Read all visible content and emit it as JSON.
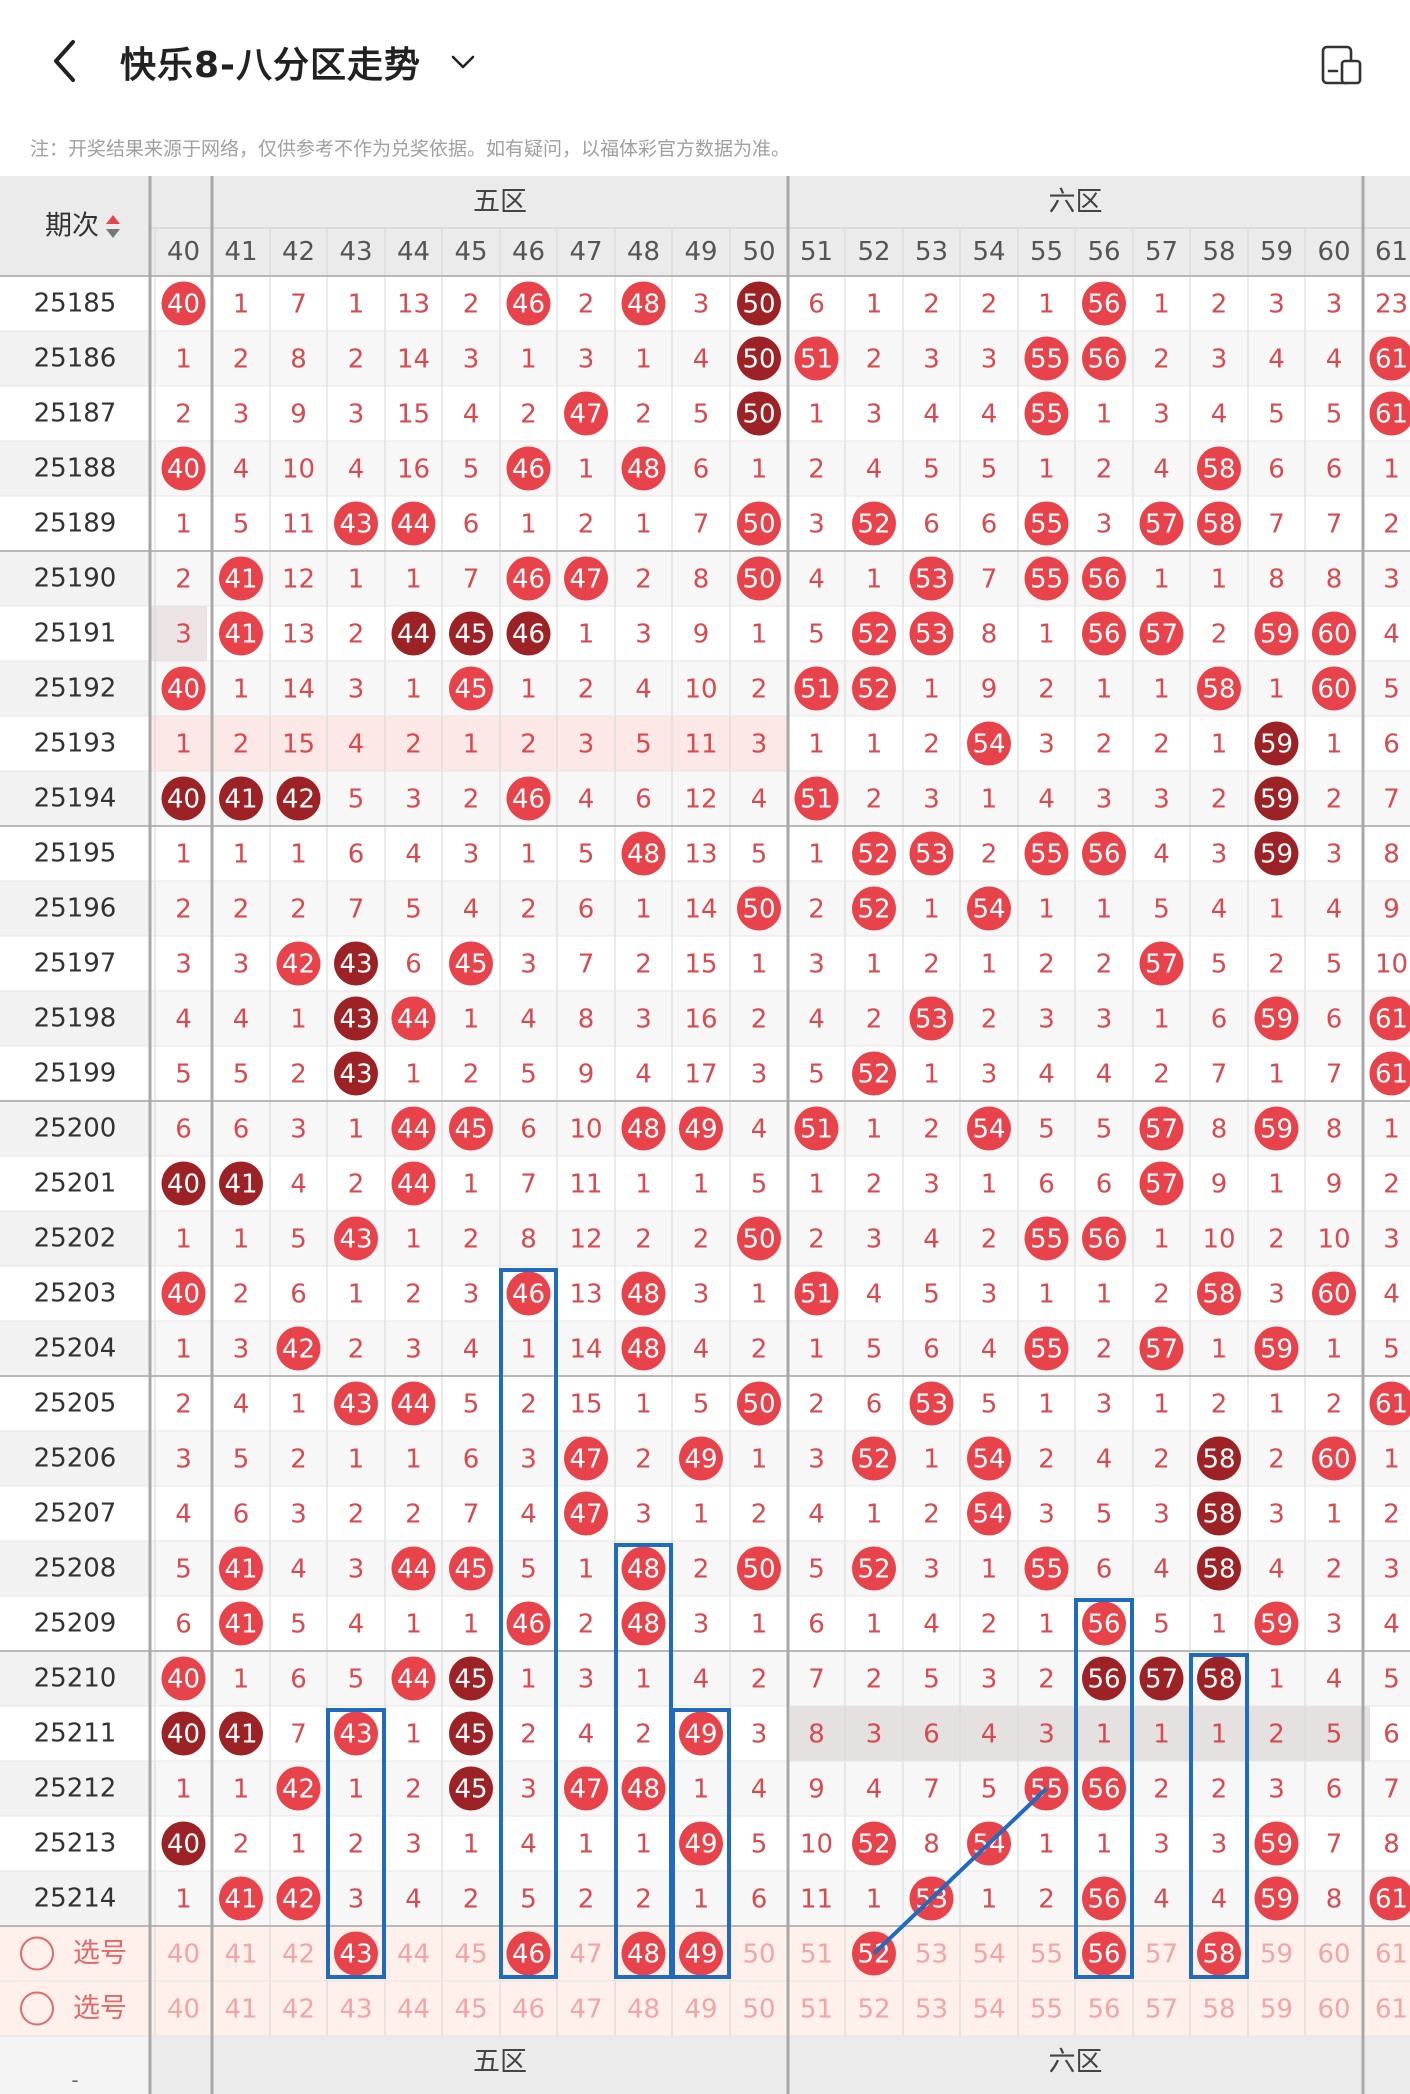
{
  "header": {
    "title": "快乐8-八分区走势",
    "back_icon": "chevron-left-icon",
    "dropdown_icon": "chevron-down-icon",
    "view_icon": "split-view-icon"
  },
  "notice": "注：开奖结果来源于网络，仅供参考不作为兑奖依据。如有疑问，以福体彩官方数据为准。",
  "table": {
    "period_header": "期次",
    "sort_icon": "sort-up-down-icon",
    "zones": [
      {
        "label": "五区",
        "from": 41,
        "to": 50
      },
      {
        "label": "六区",
        "from": 51,
        "to": 60
      }
    ],
    "columns": [
      40,
      41,
      42,
      43,
      44,
      45,
      46,
      47,
      48,
      49,
      50,
      51,
      52,
      53,
      54,
      55,
      56,
      57,
      58,
      59,
      60,
      61
    ],
    "rows": [
      {
        "period": "25185",
        "cells": [
          [
            40,
            "h"
          ],
          1,
          7,
          1,
          13,
          2,
          [
            46,
            "h"
          ],
          2,
          [
            48,
            "h"
          ],
          3,
          [
            50,
            "d"
          ],
          6,
          1,
          2,
          2,
          1,
          [
            56,
            "h"
          ],
          1,
          2,
          3,
          3,
          23
        ]
      },
      {
        "period": "25186",
        "cells": [
          1,
          2,
          8,
          2,
          14,
          3,
          1,
          3,
          1,
          4,
          [
            50,
            "d"
          ],
          [
            51,
            "h"
          ],
          2,
          3,
          3,
          [
            55,
            "h"
          ],
          [
            56,
            "h"
          ],
          2,
          3,
          4,
          4,
          [
            61,
            "h"
          ]
        ]
      },
      {
        "period": "25187",
        "cells": [
          2,
          3,
          9,
          3,
          15,
          4,
          2,
          [
            47,
            "h"
          ],
          2,
          5,
          [
            50,
            "d"
          ],
          1,
          3,
          4,
          4,
          [
            55,
            "h"
          ],
          1,
          3,
          4,
          5,
          5,
          [
            61,
            "h"
          ]
        ]
      },
      {
        "period": "25188",
        "cells": [
          [
            40,
            "h"
          ],
          4,
          10,
          4,
          16,
          5,
          [
            46,
            "h"
          ],
          1,
          [
            48,
            "h"
          ],
          6,
          1,
          2,
          4,
          5,
          5,
          1,
          2,
          4,
          [
            58,
            "h"
          ],
          6,
          6,
          1
        ]
      },
      {
        "period": "25189",
        "cells": [
          1,
          5,
          11,
          [
            43,
            "h"
          ],
          [
            44,
            "h"
          ],
          6,
          1,
          2,
          1,
          7,
          [
            50,
            "h"
          ],
          3,
          [
            52,
            "h"
          ],
          6,
          6,
          [
            55,
            "h"
          ],
          3,
          [
            57,
            "h"
          ],
          [
            58,
            "h"
          ],
          7,
          7,
          2
        ]
      },
      {
        "period": "25190",
        "cells": [
          2,
          [
            41,
            "h"
          ],
          12,
          1,
          1,
          7,
          [
            46,
            "h"
          ],
          [
            47,
            "h"
          ],
          2,
          8,
          [
            50,
            "h"
          ],
          4,
          1,
          [
            53,
            "h"
          ],
          7,
          [
            55,
            "h"
          ],
          [
            56,
            "h"
          ],
          1,
          1,
          8,
          8,
          3
        ]
      },
      {
        "period": "25191",
        "cells": [
          3,
          [
            41,
            "h"
          ],
          13,
          2,
          [
            44,
            "d"
          ],
          [
            45,
            "d"
          ],
          [
            46,
            "d"
          ],
          1,
          3,
          9,
          1,
          5,
          [
            52,
            "h"
          ],
          [
            53,
            "h"
          ],
          8,
          1,
          [
            56,
            "h"
          ],
          [
            57,
            "h"
          ],
          2,
          [
            59,
            "h"
          ],
          [
            60,
            "h"
          ],
          4
        ]
      },
      {
        "period": "25192",
        "cells": [
          [
            40,
            "h"
          ],
          1,
          14,
          3,
          1,
          [
            45,
            "h"
          ],
          1,
          2,
          4,
          10,
          2,
          [
            51,
            "h"
          ],
          [
            52,
            "h"
          ],
          1,
          9,
          2,
          1,
          1,
          [
            58,
            "h"
          ],
          1,
          [
            60,
            "h"
          ],
          5
        ]
      },
      {
        "period": "25193",
        "cells": [
          1,
          2,
          15,
          4,
          2,
          1,
          2,
          3,
          5,
          11,
          3,
          1,
          1,
          2,
          [
            54,
            "h"
          ],
          3,
          2,
          2,
          1,
          [
            59,
            "d"
          ],
          1,
          6
        ]
      },
      {
        "period": "25194",
        "cells": [
          [
            40,
            "d"
          ],
          [
            41,
            "d"
          ],
          [
            42,
            "d"
          ],
          5,
          3,
          2,
          [
            46,
            "h"
          ],
          4,
          6,
          12,
          4,
          [
            51,
            "h"
          ],
          2,
          3,
          1,
          4,
          3,
          3,
          2,
          [
            59,
            "d"
          ],
          2,
          7
        ]
      },
      {
        "period": "25195",
        "cells": [
          1,
          1,
          1,
          6,
          4,
          3,
          1,
          5,
          [
            48,
            "h"
          ],
          13,
          5,
          1,
          [
            52,
            "h"
          ],
          [
            53,
            "h"
          ],
          2,
          [
            55,
            "h"
          ],
          [
            56,
            "h"
          ],
          4,
          3,
          [
            59,
            "d"
          ],
          3,
          8
        ]
      },
      {
        "period": "25196",
        "cells": [
          2,
          2,
          2,
          7,
          5,
          4,
          2,
          6,
          1,
          14,
          [
            50,
            "h"
          ],
          2,
          [
            52,
            "h"
          ],
          1,
          [
            54,
            "h"
          ],
          1,
          1,
          5,
          4,
          1,
          4,
          9
        ]
      },
      {
        "period": "25197",
        "cells": [
          3,
          3,
          [
            42,
            "h"
          ],
          [
            43,
            "d"
          ],
          6,
          [
            45,
            "h"
          ],
          3,
          7,
          2,
          15,
          1,
          3,
          1,
          2,
          1,
          2,
          2,
          [
            57,
            "h"
          ],
          5,
          2,
          5,
          10
        ]
      },
      {
        "period": "25198",
        "cells": [
          4,
          4,
          1,
          [
            43,
            "d"
          ],
          [
            44,
            "h"
          ],
          1,
          4,
          8,
          3,
          16,
          2,
          4,
          2,
          [
            53,
            "h"
          ],
          2,
          3,
          3,
          1,
          6,
          [
            59,
            "h"
          ],
          6,
          [
            61,
            "h"
          ]
        ]
      },
      {
        "period": "25199",
        "cells": [
          5,
          5,
          2,
          [
            43,
            "d"
          ],
          1,
          2,
          5,
          9,
          4,
          17,
          3,
          5,
          [
            52,
            "h"
          ],
          1,
          3,
          4,
          4,
          2,
          7,
          1,
          7,
          [
            61,
            "h"
          ]
        ]
      },
      {
        "period": "25200",
        "cells": [
          6,
          6,
          3,
          1,
          [
            44,
            "h"
          ],
          [
            45,
            "h"
          ],
          6,
          10,
          [
            48,
            "h"
          ],
          [
            49,
            "h"
          ],
          4,
          [
            51,
            "h"
          ],
          1,
          2,
          [
            54,
            "h"
          ],
          5,
          5,
          [
            57,
            "h"
          ],
          8,
          [
            59,
            "h"
          ],
          8,
          1
        ]
      },
      {
        "period": "25201",
        "cells": [
          [
            40,
            "d"
          ],
          [
            41,
            "d"
          ],
          4,
          2,
          [
            44,
            "h"
          ],
          1,
          7,
          11,
          1,
          1,
          5,
          1,
          2,
          3,
          1,
          6,
          6,
          [
            57,
            "h"
          ],
          9,
          1,
          9,
          2
        ]
      },
      {
        "period": "25202",
        "cells": [
          1,
          1,
          5,
          [
            43,
            "h"
          ],
          1,
          2,
          8,
          12,
          2,
          2,
          [
            50,
            "h"
          ],
          2,
          3,
          4,
          2,
          [
            55,
            "h"
          ],
          [
            56,
            "h"
          ],
          1,
          10,
          2,
          10,
          3
        ]
      },
      {
        "period": "25203",
        "cells": [
          [
            40,
            "h"
          ],
          2,
          6,
          1,
          2,
          3,
          [
            46,
            "h"
          ],
          13,
          [
            48,
            "h"
          ],
          3,
          1,
          [
            51,
            "h"
          ],
          4,
          5,
          3,
          1,
          1,
          2,
          [
            58,
            "h"
          ],
          3,
          [
            60,
            "h"
          ],
          4
        ]
      },
      {
        "period": "25204",
        "cells": [
          1,
          3,
          [
            42,
            "h"
          ],
          2,
          3,
          4,
          1,
          14,
          [
            48,
            "h"
          ],
          4,
          2,
          1,
          5,
          6,
          4,
          [
            55,
            "h"
          ],
          2,
          [
            57,
            "h"
          ],
          1,
          [
            59,
            "h"
          ],
          1,
          5
        ]
      },
      {
        "period": "25205",
        "cells": [
          2,
          4,
          1,
          [
            43,
            "h"
          ],
          [
            44,
            "h"
          ],
          5,
          2,
          15,
          1,
          5,
          [
            50,
            "h"
          ],
          2,
          6,
          [
            53,
            "h"
          ],
          5,
          1,
          3,
          1,
          2,
          1,
          2,
          [
            61,
            "h"
          ]
        ]
      },
      {
        "period": "25206",
        "cells": [
          3,
          5,
          2,
          1,
          1,
          6,
          3,
          [
            47,
            "h"
          ],
          2,
          [
            49,
            "h"
          ],
          1,
          3,
          [
            52,
            "h"
          ],
          1,
          [
            54,
            "h"
          ],
          2,
          4,
          2,
          [
            58,
            "d"
          ],
          2,
          [
            60,
            "h"
          ],
          1
        ]
      },
      {
        "period": "25207",
        "cells": [
          4,
          6,
          3,
          2,
          2,
          7,
          4,
          [
            47,
            "h"
          ],
          3,
          1,
          2,
          4,
          1,
          2,
          [
            54,
            "h"
          ],
          3,
          5,
          3,
          [
            58,
            "d"
          ],
          3,
          1,
          2
        ]
      },
      {
        "period": "25208",
        "cells": [
          5,
          [
            41,
            "h"
          ],
          4,
          3,
          [
            44,
            "h"
          ],
          [
            45,
            "h"
          ],
          5,
          1,
          [
            48,
            "h"
          ],
          2,
          [
            50,
            "h"
          ],
          5,
          [
            52,
            "h"
          ],
          3,
          1,
          [
            55,
            "h"
          ],
          6,
          4,
          [
            58,
            "d"
          ],
          4,
          2,
          3
        ]
      },
      {
        "period": "25209",
        "cells": [
          6,
          [
            41,
            "h"
          ],
          5,
          4,
          1,
          1,
          [
            46,
            "h"
          ],
          2,
          [
            48,
            "h"
          ],
          3,
          1,
          6,
          1,
          4,
          2,
          1,
          [
            56,
            "h"
          ],
          5,
          1,
          [
            59,
            "h"
          ],
          3,
          4
        ]
      },
      {
        "period": "25210",
        "cells": [
          [
            40,
            "h"
          ],
          1,
          6,
          5,
          [
            44,
            "h"
          ],
          [
            45,
            "d"
          ],
          1,
          3,
          1,
          4,
          2,
          7,
          2,
          5,
          3,
          2,
          [
            56,
            "d"
          ],
          [
            57,
            "d"
          ],
          [
            58,
            "d"
          ],
          1,
          4,
          5
        ]
      },
      {
        "period": "25211",
        "cells": [
          [
            40,
            "d"
          ],
          [
            41,
            "d"
          ],
          7,
          [
            43,
            "h"
          ],
          1,
          [
            45,
            "d"
          ],
          2,
          4,
          2,
          [
            49,
            "h"
          ],
          3,
          8,
          3,
          6,
          4,
          3,
          1,
          1,
          1,
          2,
          5,
          6
        ]
      },
      {
        "period": "25212",
        "cells": [
          1,
          1,
          [
            42,
            "h"
          ],
          1,
          2,
          [
            45,
            "d"
          ],
          3,
          [
            47,
            "h"
          ],
          [
            48,
            "h"
          ],
          1,
          4,
          9,
          4,
          7,
          5,
          [
            55,
            "h"
          ],
          [
            56,
            "h"
          ],
          2,
          2,
          3,
          6,
          7
        ]
      },
      {
        "period": "25213",
        "cells": [
          [
            40,
            "d"
          ],
          2,
          1,
          2,
          3,
          1,
          4,
          1,
          1,
          [
            49,
            "h"
          ],
          5,
          10,
          [
            52,
            "h"
          ],
          8,
          [
            54,
            "h"
          ],
          1,
          1,
          3,
          3,
          [
            59,
            "h"
          ],
          7,
          8
        ]
      },
      {
        "period": "25214",
        "cells": [
          1,
          [
            41,
            "h"
          ],
          [
            42,
            "h"
          ],
          3,
          4,
          2,
          5,
          2,
          2,
          1,
          6,
          11,
          1,
          [
            53,
            "h"
          ],
          1,
          2,
          [
            56,
            "h"
          ],
          4,
          4,
          [
            59,
            "h"
          ],
          8,
          [
            61,
            "h"
          ]
        ]
      }
    ],
    "select_label": "选号",
    "select_row_1_picked": [
      43,
      46,
      48,
      49,
      52,
      56,
      58
    ],
    "select_row_2_picked": []
  },
  "colors": {
    "ball_red": "#e8424a",
    "ball_dark": "#9c2226",
    "digit_red": "#d84a4e",
    "header_bg": "#ebebeb",
    "select_bg": "#fff0ec",
    "box_blue": "#1f6bbf"
  }
}
